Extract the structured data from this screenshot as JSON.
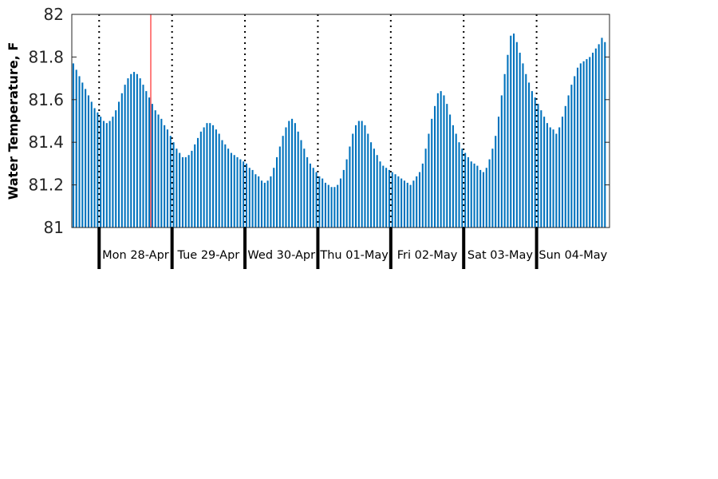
{
  "chart_data": {
    "type": "bar",
    "title": "",
    "xlabel": "",
    "ylabel": "Water Temperature, F",
    "ylim": [
      81,
      82
    ],
    "yticks": [
      81,
      81.2,
      81.4,
      81.6,
      81.8,
      82
    ],
    "ytick_labels": [
      "81",
      "81.2",
      "81.4",
      "81.6",
      "81.8",
      "82"
    ],
    "grid": false,
    "bar_color": "#0072BD",
    "marker_color": "#FF0000",
    "day_labels": [
      "Mon 28-Apr",
      "Tue 29-Apr",
      "Wed 30-Apr",
      "Thu 01-May",
      "Fri 02-May",
      "Sat 03-May",
      "Sun 04-May"
    ],
    "series": [
      {
        "hours_per_bar": 1,
        "first_hour_offset": -9,
        "values": [
          81.77,
          81.74,
          81.71,
          81.68,
          81.65,
          81.62,
          81.59,
          81.56,
          81.54,
          81.52,
          81.5,
          81.49,
          81.5,
          81.52,
          81.55,
          81.59,
          81.63,
          81.67,
          81.7,
          81.72,
          81.73,
          81.72,
          81.7,
          81.67,
          81.64,
          81.61,
          81.58,
          81.55,
          81.53,
          81.51,
          81.48,
          81.46,
          81.43,
          81.4,
          81.37,
          81.35,
          81.33,
          81.33,
          81.34,
          81.36,
          81.39,
          81.42,
          81.45,
          81.47,
          81.49,
          81.49,
          81.48,
          81.46,
          81.44,
          81.41,
          81.39,
          81.37,
          81.35,
          81.34,
          81.33,
          81.32,
          81.31,
          81.3,
          81.28,
          81.27,
          81.25,
          81.24,
          81.22,
          81.21,
          81.22,
          81.24,
          81.28,
          81.33,
          81.38,
          81.43,
          81.47,
          81.5,
          81.51,
          81.49,
          81.45,
          81.41,
          81.37,
          81.33,
          81.3,
          81.28,
          81.26,
          81.24,
          81.23,
          81.21,
          81.2,
          81.19,
          81.19,
          81.2,
          81.23,
          81.27,
          81.32,
          81.38,
          81.44,
          81.48,
          81.5,
          81.5,
          81.48,
          81.44,
          81.4,
          81.37,
          81.34,
          81.31,
          81.29,
          81.28,
          81.27,
          81.26,
          81.25,
          81.24,
          81.23,
          81.22,
          81.21,
          81.2,
          81.22,
          81.24,
          81.26,
          81.3,
          81.37,
          81.44,
          81.51,
          81.57,
          81.63,
          81.64,
          81.62,
          81.58,
          81.53,
          81.48,
          81.44,
          81.4,
          81.37,
          81.35,
          81.33,
          81.31,
          81.3,
          81.29,
          81.27,
          81.26,
          81.28,
          81.32,
          81.37,
          81.43,
          81.52,
          81.62,
          81.72,
          81.81,
          81.9,
          81.91,
          81.87,
          81.82,
          81.77,
          81.72,
          81.68,
          81.64,
          81.61,
          81.58,
          81.55,
          81.52,
          81.49,
          81.47,
          81.46,
          81.44,
          81.47,
          81.52,
          81.57,
          81.62,
          81.67,
          81.71,
          81.75,
          81.77,
          81.78,
          81.79,
          81.8,
          81.82,
          81.84,
          81.86,
          81.89,
          81.87
        ]
      }
    ]
  }
}
